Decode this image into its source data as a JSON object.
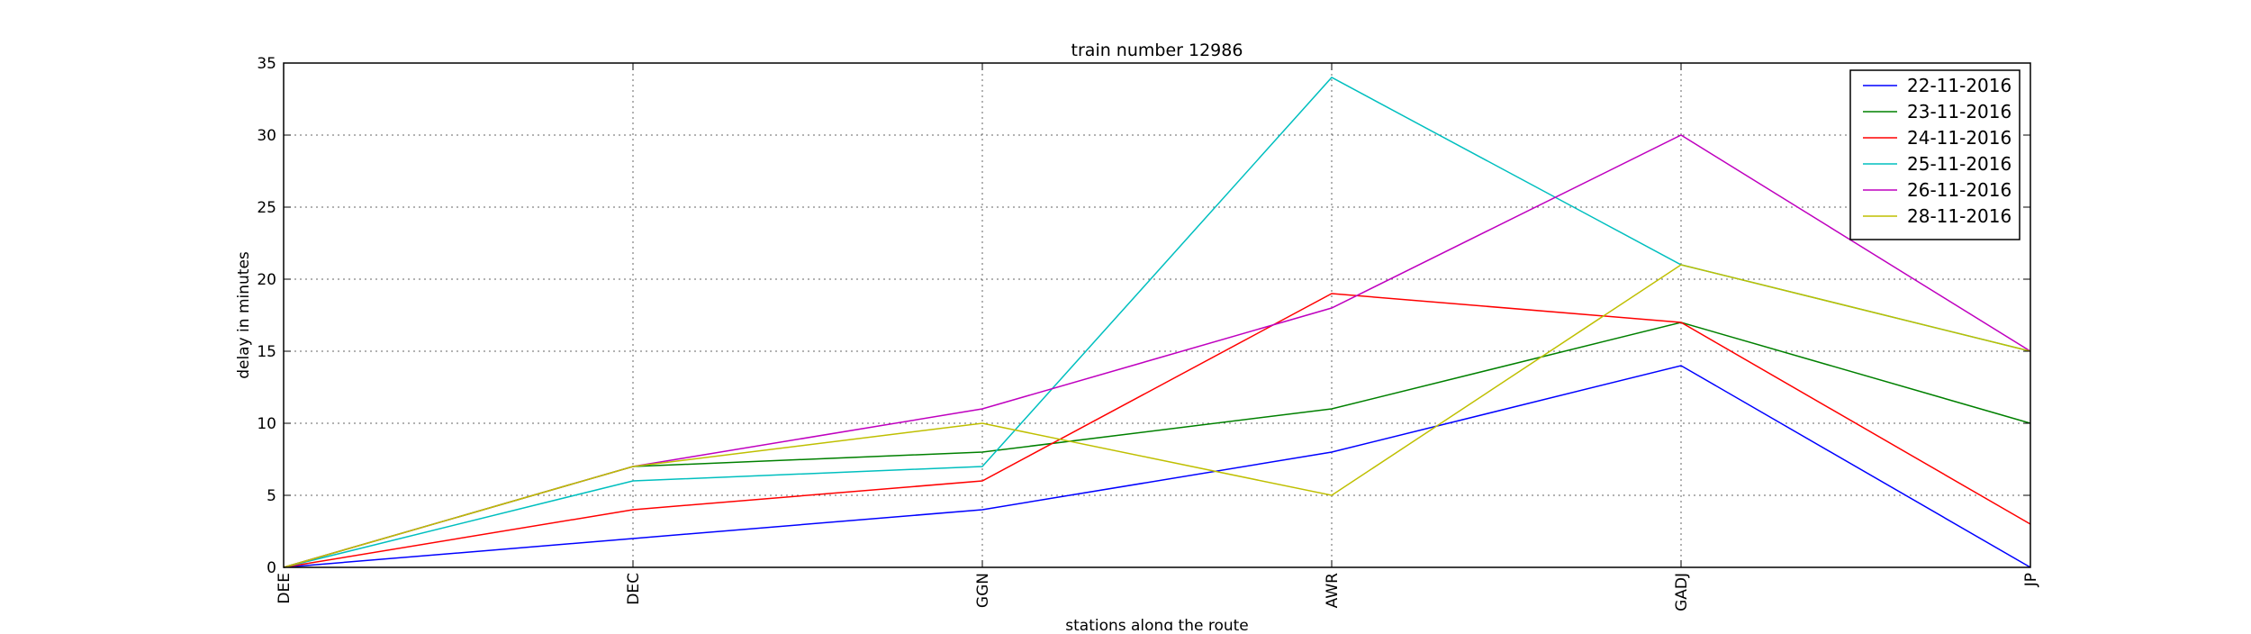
{
  "chart_data": {
    "type": "line",
    "title": "train number 12986",
    "xlabel": "stations along the route",
    "ylabel": "delay in minutes",
    "categories": [
      "DEE",
      "DEC",
      "GGN",
      "AWR",
      "GADJ",
      "JP"
    ],
    "ylim": [
      0,
      35
    ],
    "yticks": [
      0,
      5,
      10,
      15,
      20,
      25,
      30,
      35
    ],
    "grid": true,
    "legend_position": "top-right",
    "series": [
      {
        "name": "22-11-2016",
        "color": "#0000ff",
        "values": [
          0,
          2,
          4,
          8,
          14,
          0
        ]
      },
      {
        "name": "23-11-2016",
        "color": "#008000",
        "values": [
          0,
          7,
          8,
          11,
          17,
          10
        ]
      },
      {
        "name": "24-11-2016",
        "color": "#ff0000",
        "values": [
          0,
          4,
          6,
          19,
          17,
          3
        ]
      },
      {
        "name": "25-11-2016",
        "color": "#00bfbf",
        "values": [
          0,
          6,
          7,
          34,
          21,
          15
        ]
      },
      {
        "name": "26-11-2016",
        "color": "#bf00bf",
        "values": [
          0,
          7,
          11,
          18,
          30,
          15
        ]
      },
      {
        "name": "28-11-2016",
        "color": "#bfbf00",
        "values": [
          0,
          7,
          10,
          5,
          21,
          15
        ]
      }
    ]
  }
}
